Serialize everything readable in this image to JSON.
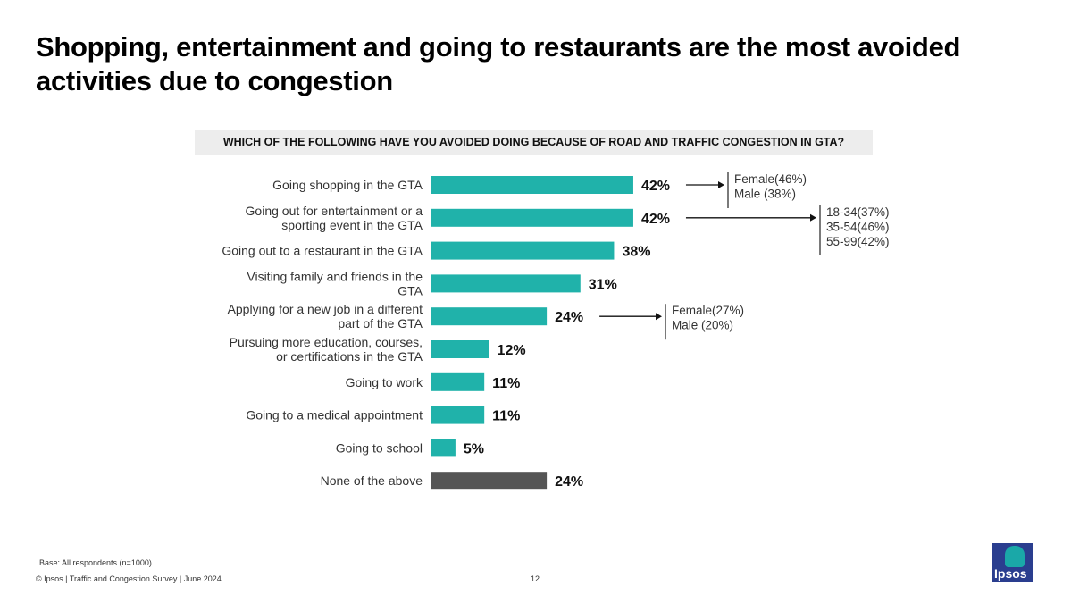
{
  "title": "Shopping, entertainment and going to restaurants are the most avoided activities due to congestion",
  "question": "WHICH OF THE FOLLOWING HAVE YOU AVOIDED DOING BECAUSE OF ROAD AND TRAFFIC CONGESTION IN GTA?",
  "chart_data": {
    "type": "bar",
    "orientation": "horizontal",
    "title": "WHICH OF THE FOLLOWING HAVE YOU AVOIDED DOING BECAUSE OF ROAD AND TRAFFIC CONGESTION IN GTA?",
    "categories": [
      [
        "Going shopping in the GTA"
      ],
      [
        "Going out for entertainment or a",
        "sporting event in the GTA"
      ],
      [
        "Going out to a restaurant in the GTA"
      ],
      [
        "Visiting family and friends in the",
        "GTA"
      ],
      [
        "Applying for a new job in a different",
        "part of the GTA"
      ],
      [
        "Pursuing more education, courses,",
        "or certifications in the GTA"
      ],
      [
        "Going to work"
      ],
      [
        "Going to a medical appointment"
      ],
      [
        "Going to school"
      ],
      [
        "None of the above"
      ]
    ],
    "values": [
      42,
      42,
      38,
      31,
      24,
      12,
      11,
      11,
      5,
      24
    ],
    "value_labels": [
      "42%",
      "42%",
      "38%",
      "31%",
      "24%",
      "12%",
      "11%",
      "11%",
      "5%",
      "24%"
    ],
    "colors": [
      "#20b2aa",
      "#20b2aa",
      "#20b2aa",
      "#20b2aa",
      "#20b2aa",
      "#20b2aa",
      "#20b2aa",
      "#20b2aa",
      "#20b2aa",
      "#555555"
    ],
    "xlim": [
      0,
      100
    ],
    "annotations": [
      {
        "row": 0,
        "lines": [
          "Female(46%)",
          "Male (38%)"
        ]
      },
      {
        "row": 1,
        "lines": [
          "18-34(37%)",
          "35-54(46%)",
          "55-99(42%)"
        ]
      },
      {
        "row": 4,
        "lines": [
          "Female(27%)",
          "Male (20%)"
        ]
      }
    ]
  },
  "footer": {
    "base": "Base: All respondents (n=1000)",
    "source": "© Ipsos | Traffic and Congestion Survey | June 2024",
    "page": "12",
    "logo": "Ipsos"
  }
}
